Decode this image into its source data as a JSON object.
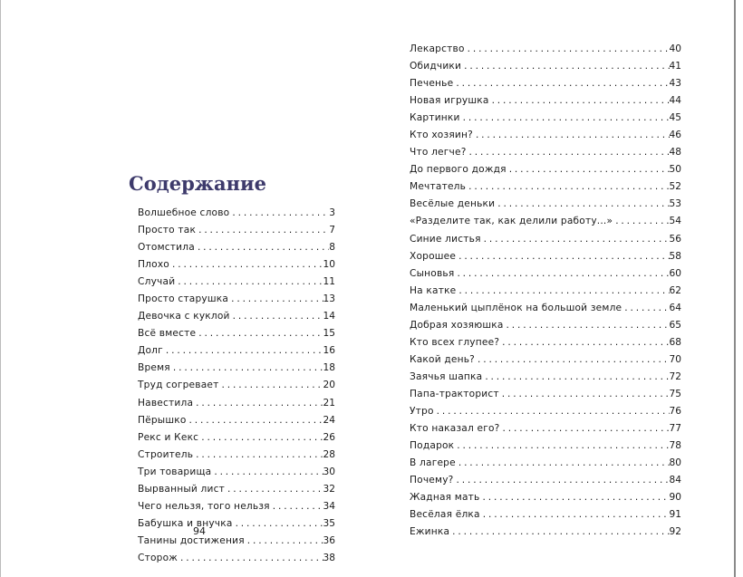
{
  "left_page": {
    "title": "Содержание",
    "page_number": "94",
    "entries": [
      {
        "title": "Волшебное слово",
        "page": "3"
      },
      {
        "title": "Просто так",
        "page": "7"
      },
      {
        "title": "Отомстила",
        "page": "8"
      },
      {
        "title": "Плохо",
        "page": "10"
      },
      {
        "title": "Случай",
        "page": "11"
      },
      {
        "title": "Просто старушка",
        "page": "13"
      },
      {
        "title": "Девочка с куклой",
        "page": "14"
      },
      {
        "title": "Всё вместе",
        "page": "15"
      },
      {
        "title": "Долг",
        "page": "16"
      },
      {
        "title": "Время",
        "page": "18"
      },
      {
        "title": "Труд согревает",
        "page": "20"
      },
      {
        "title": "Навестила",
        "page": "21"
      },
      {
        "title": "Пёрышко",
        "page": "24"
      },
      {
        "title": "Рекс и Кекс",
        "page": "26"
      },
      {
        "title": "Строитель",
        "page": "28"
      },
      {
        "title": "Три товарища",
        "page": "30"
      },
      {
        "title": "Вырванный лист",
        "page": "32"
      },
      {
        "title": "Чего нельзя, того нельзя",
        "page": "34"
      },
      {
        "title": "Бабушка и внучка",
        "page": "35"
      },
      {
        "title": "Танины достижения",
        "page": "36"
      },
      {
        "title": "Сторож",
        "page": "38"
      }
    ]
  },
  "right_page": {
    "entries": [
      {
        "title": "Лекарство",
        "page": "40"
      },
      {
        "title": "Обидчики",
        "page": "41"
      },
      {
        "title": "Печенье",
        "page": "43"
      },
      {
        "title": "Новая игрушка",
        "page": "44"
      },
      {
        "title": "Картинки",
        "page": "45"
      },
      {
        "title": "Кто хозяин?",
        "page": "46"
      },
      {
        "title": "Что легче?",
        "page": "48"
      },
      {
        "title": "До первого дождя",
        "page": "50"
      },
      {
        "title": "Мечтатель",
        "page": "52"
      },
      {
        "title": "Весёлые деньки",
        "page": "53"
      },
      {
        "title": "«Разделите так, как делили работу...»",
        "page": "54"
      },
      {
        "title": "Синие листья",
        "page": "56"
      },
      {
        "title": "Хорошее",
        "page": "58"
      },
      {
        "title": "Сыновья",
        "page": "60"
      },
      {
        "title": "На катке",
        "page": "62"
      },
      {
        "title": "Маленький цыплёнок на большой земле",
        "page": "64"
      },
      {
        "title": "Добрая хозяюшка",
        "page": "65"
      },
      {
        "title": "Кто всех глупее?",
        "page": "68"
      },
      {
        "title": "Какой день?",
        "page": "70"
      },
      {
        "title": "Заячья шапка",
        "page": "72"
      },
      {
        "title": "Папа-тракторист",
        "page": "75"
      },
      {
        "title": "Утро",
        "page": "76"
      },
      {
        "title": "Кто наказал его?",
        "page": "77"
      },
      {
        "title": "Подарок",
        "page": "78"
      },
      {
        "title": "В лагере",
        "page": "80"
      },
      {
        "title": "Почему?",
        "page": "84"
      },
      {
        "title": "Жадная мать",
        "page": "90"
      },
      {
        "title": "Весёлая ёлка",
        "page": "91"
      },
      {
        "title": "Ежинка",
        "page": "92"
      }
    ]
  },
  "colors": {
    "title": "#3d3a6b",
    "text": "#1a1a1a"
  }
}
